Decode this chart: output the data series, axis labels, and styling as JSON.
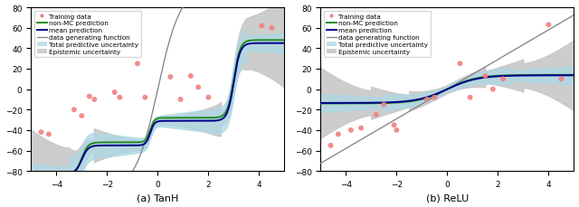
{
  "title_left": "(a) TanH",
  "title_right": "(b) ReLU",
  "xlim": [
    -5,
    5
  ],
  "ylim": [
    -80,
    80
  ],
  "yticks": [
    -80,
    -60,
    -40,
    -20,
    0,
    20,
    40,
    60,
    80
  ],
  "xticks": [
    -4,
    -2,
    0,
    2,
    4
  ],
  "legend_items": [
    "Training data",
    "non-MC prediction",
    "mean prediction",
    "data generating function",
    "Total predictive uncertainty",
    "Epistemic uncertainty"
  ],
  "color_training": "#f08080",
  "color_nonmc": "#228B22",
  "color_mean": "#00008B",
  "color_datagen": "#808080",
  "color_total_unc": "#add8e6",
  "color_epistemic": "#c8c8c8",
  "training_x_tanh": [
    -4.6,
    -4.3,
    -3.3,
    -3.0,
    -2.7,
    -2.5,
    -1.7,
    -1.5,
    -0.8,
    -0.5,
    0.5,
    0.9,
    1.3,
    1.6,
    2.0,
    4.1,
    4.5
  ],
  "training_y_tanh": [
    -42,
    -44,
    -20,
    -26,
    -7,
    -10,
    -3,
    -8,
    25,
    -8,
    12,
    -10,
    13,
    2,
    -8,
    62,
    60
  ],
  "training_x_relu": [
    -4.6,
    -4.3,
    -3.8,
    -3.4,
    -2.8,
    -2.5,
    -2.1,
    -2.0,
    -0.8,
    -0.5,
    0.5,
    0.9,
    1.5,
    1.8,
    2.2,
    4.0,
    4.5
  ],
  "training_y_relu": [
    -55,
    -44,
    -40,
    -38,
    -25,
    -15,
    -35,
    -40,
    -10,
    -8,
    25,
    -8,
    13,
    0,
    10,
    63,
    10
  ],
  "background_color": "#ffffff"
}
